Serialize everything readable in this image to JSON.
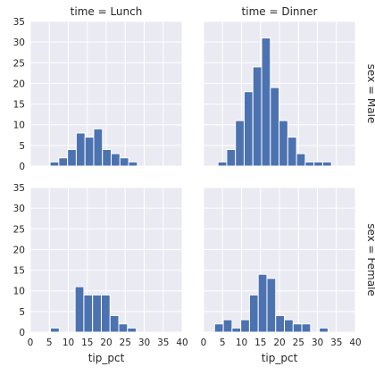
{
  "chart_data": {
    "type": "bar",
    "subtype": "histogram-facet-grid",
    "x_variable": "tip_pct",
    "xlabel": "tip_pct",
    "xlim": [
      0,
      40
    ],
    "ylim": [
      0,
      35
    ],
    "x_ticks": [
      0,
      5,
      10,
      15,
      20,
      25,
      30,
      35,
      40
    ],
    "y_ticks": [
      0,
      5,
      10,
      15,
      20,
      25,
      30,
      35
    ],
    "bar_color": "#4c72b0",
    "background_color": "#eaeaf2",
    "grid": true,
    "col_titles": [
      "time = Lunch",
      "time = Dinner"
    ],
    "row_titles": [
      "sex = Male",
      "sex = Female"
    ],
    "panels": [
      {
        "row": 0,
        "col": 0,
        "col_title": "time = Lunch",
        "row_title": "sex = Male",
        "bins": [
          {
            "x0": 5.2,
            "x1": 7.5,
            "count": 1
          },
          {
            "x0": 7.5,
            "x1": 9.8,
            "count": 2
          },
          {
            "x0": 9.8,
            "x1": 12.1,
            "count": 4
          },
          {
            "x0": 12.1,
            "x1": 14.4,
            "count": 8
          },
          {
            "x0": 14.4,
            "x1": 16.7,
            "count": 7
          },
          {
            "x0": 16.7,
            "x1": 19.0,
            "count": 9
          },
          {
            "x0": 19.0,
            "x1": 21.3,
            "count": 4
          },
          {
            "x0": 21.3,
            "x1": 23.6,
            "count": 3
          },
          {
            "x0": 23.6,
            "x1": 25.9,
            "count": 2
          },
          {
            "x0": 25.9,
            "x1": 28.2,
            "count": 1
          }
        ]
      },
      {
        "row": 0,
        "col": 1,
        "col_title": "time = Dinner",
        "row_title": "sex = Male",
        "bins": [
          {
            "x0": 3.8,
            "x1": 6.1,
            "count": 1
          },
          {
            "x0": 6.1,
            "x1": 8.4,
            "count": 4
          },
          {
            "x0": 8.4,
            "x1": 10.7,
            "count": 11
          },
          {
            "x0": 10.7,
            "x1": 13.0,
            "count": 18
          },
          {
            "x0": 13.0,
            "x1": 15.3,
            "count": 24
          },
          {
            "x0": 15.3,
            "x1": 17.6,
            "count": 31
          },
          {
            "x0": 17.6,
            "x1": 19.9,
            "count": 19
          },
          {
            "x0": 19.9,
            "x1": 22.2,
            "count": 11
          },
          {
            "x0": 22.2,
            "x1": 24.5,
            "count": 7
          },
          {
            "x0": 24.5,
            "x1": 26.8,
            "count": 3
          },
          {
            "x0": 26.8,
            "x1": 29.1,
            "count": 1
          },
          {
            "x0": 29.1,
            "x1": 31.4,
            "count": 1
          },
          {
            "x0": 31.4,
            "x1": 33.7,
            "count": 1
          }
        ]
      },
      {
        "row": 1,
        "col": 0,
        "col_title": "time = Lunch",
        "row_title": "sex = Female",
        "bins": [
          {
            "x0": 5.3,
            "x1": 7.6,
            "count": 1
          },
          {
            "x0": 11.8,
            "x1": 14.1,
            "count": 11
          },
          {
            "x0": 14.1,
            "x1": 16.4,
            "count": 9
          },
          {
            "x0": 16.4,
            "x1": 18.7,
            "count": 9
          },
          {
            "x0": 18.7,
            "x1": 21.0,
            "count": 9
          },
          {
            "x0": 21.0,
            "x1": 23.3,
            "count": 4
          },
          {
            "x0": 23.3,
            "x1": 25.6,
            "count": 2
          },
          {
            "x0": 25.6,
            "x1": 27.9,
            "count": 1
          }
        ]
      },
      {
        "row": 1,
        "col": 1,
        "col_title": "time = Dinner",
        "row_title": "sex = Female",
        "bins": [
          {
            "x0": 2.9,
            "x1": 5.2,
            "count": 2
          },
          {
            "x0": 5.2,
            "x1": 7.5,
            "count": 3
          },
          {
            "x0": 7.5,
            "x1": 9.8,
            "count": 1
          },
          {
            "x0": 9.8,
            "x1": 12.1,
            "count": 3
          },
          {
            "x0": 12.1,
            "x1": 14.4,
            "count": 9
          },
          {
            "x0": 14.4,
            "x1": 16.7,
            "count": 14
          },
          {
            "x0": 16.7,
            "x1": 19.0,
            "count": 13
          },
          {
            "x0": 19.0,
            "x1": 21.3,
            "count": 4
          },
          {
            "x0": 21.3,
            "x1": 23.6,
            "count": 3
          },
          {
            "x0": 23.6,
            "x1": 25.9,
            "count": 2
          },
          {
            "x0": 25.9,
            "x1": 28.2,
            "count": 2
          },
          {
            "x0": 28.2,
            "x1": 30.5,
            "count": 0
          },
          {
            "x0": 30.5,
            "x1": 32.8,
            "count": 1
          }
        ]
      }
    ]
  }
}
